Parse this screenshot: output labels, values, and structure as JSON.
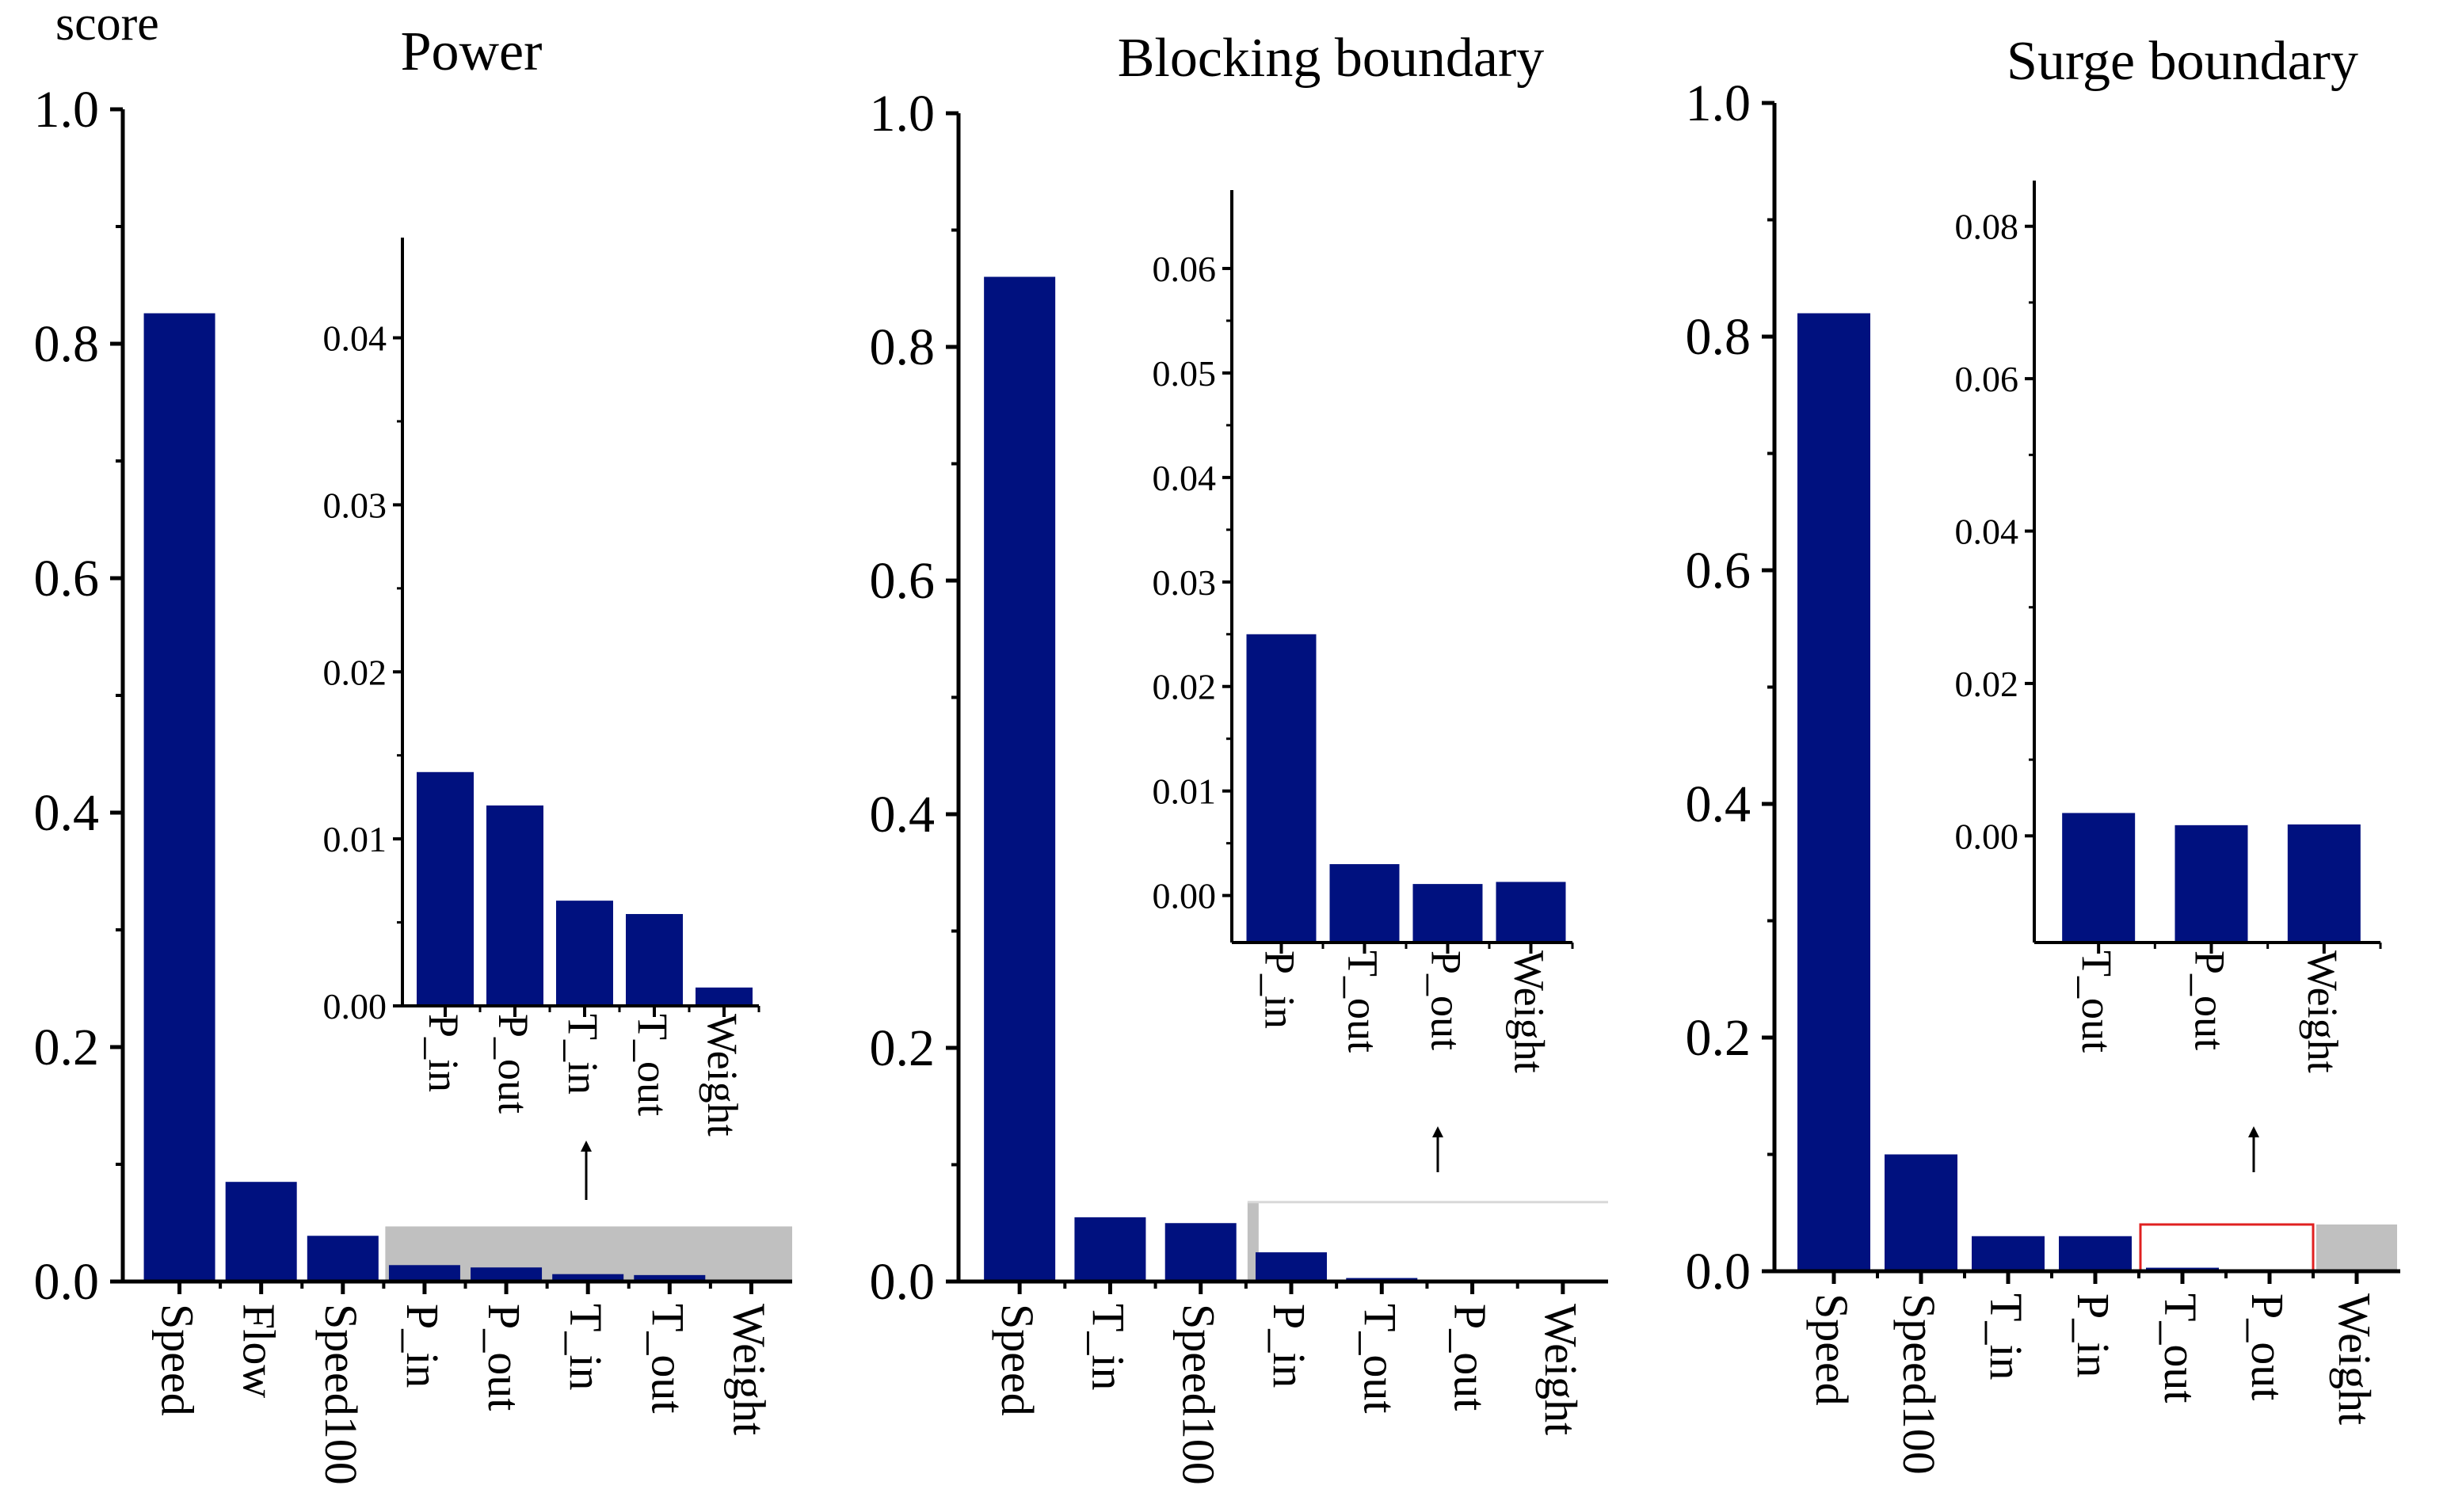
{
  "score_label": "score",
  "colors": {
    "bar": "#00117F",
    "highlight_gray": "#C0C0C0",
    "highlight_red": "#E02020",
    "axis": "#000000"
  },
  "chart_data": [
    {
      "id": "power",
      "type": "bar",
      "title": "Power",
      "ylabel": "score",
      "xlabel": "",
      "ylim": [
        0,
        1.0
      ],
      "yticks": [
        "1.0",
        "0.8",
        "0.6",
        "0.4",
        "0.2",
        "0.0"
      ],
      "ytick_values": [
        1.0,
        0.8,
        0.6,
        0.4,
        0.2,
        0.0
      ],
      "categories": [
        "Speed",
        "Flow",
        "Speed100",
        "P_in",
        "P_out",
        "T_in",
        "T_out",
        "Weight"
      ],
      "values": [
        0.826,
        0.085,
        0.039,
        0.014,
        0.012,
        0.0063,
        0.0055,
        0.0011
      ],
      "highlight": {
        "style": "gray",
        "from": "P_in",
        "to": "Weight"
      },
      "inset": {
        "categories": [
          "P_in",
          "P_out",
          "T_in",
          "T_out",
          "Weight"
        ],
        "values": [
          0.014,
          0.012,
          0.0063,
          0.0055,
          0.0011
        ],
        "ylim": [
          0,
          0.046
        ],
        "yticks": [
          "0.04",
          "0.03",
          "0.02",
          "0.01",
          "0.00"
        ],
        "ytick_values": [
          0.04,
          0.03,
          0.02,
          0.01,
          0.0
        ]
      }
    },
    {
      "id": "blocking",
      "type": "bar",
      "title": "Blocking boundary",
      "ylabel": "",
      "xlabel": "",
      "ylim": [
        0,
        1.0
      ],
      "yticks": [
        "1.0",
        "0.8",
        "0.6",
        "0.4",
        "0.2",
        "0.0"
      ],
      "ytick_values": [
        1.0,
        0.8,
        0.6,
        0.4,
        0.2,
        0.0
      ],
      "categories": [
        "Speed",
        "T_in",
        "Speed100",
        "P_in",
        "T_out",
        "P_out",
        "Weight"
      ],
      "values": [
        0.86,
        0.055,
        0.05,
        0.025,
        0.003,
        0.0011,
        0.0013
      ],
      "highlight": {
        "style": "outline",
        "from": "P_in",
        "to": "Weight"
      },
      "inset": {
        "categories": [
          "P_in",
          "T_out",
          "P_out",
          "Weight"
        ],
        "values": [
          0.025,
          0.003,
          0.0011,
          0.0013
        ],
        "ylim": [
          -0.0045,
          0.0675
        ],
        "yticks": [
          "0.06",
          "0.05",
          "0.04",
          "0.03",
          "0.02",
          "0.01",
          "0.00"
        ],
        "ytick_values": [
          0.06,
          0.05,
          0.04,
          0.03,
          0.02,
          0.01,
          0.0
        ]
      }
    },
    {
      "id": "surge",
      "type": "bar",
      "title": "Surge boundary",
      "ylabel": "",
      "xlabel": "",
      "ylim": [
        0,
        1.0
      ],
      "yticks": [
        "1.0",
        "0.8",
        "0.6",
        "0.4",
        "0.2",
        "0.0"
      ],
      "ytick_values": [
        1.0,
        0.8,
        0.6,
        0.4,
        0.2,
        0.0
      ],
      "categories": [
        "Speed",
        "Speed100",
        "T_in",
        "P_in",
        "T_out",
        "P_out",
        "Weight"
      ],
      "values": [
        0.82,
        0.1,
        0.03,
        0.03,
        0.003,
        0.0014,
        0.0015
      ],
      "highlight": {
        "style": "red-gray",
        "from": "T_out",
        "to": "Weight"
      },
      "inset": {
        "categories": [
          "T_out",
          "P_out",
          "Weight"
        ],
        "values": [
          0.003,
          0.0014,
          0.0015
        ],
        "ylim": [
          -0.014,
          0.086
        ],
        "yticks": [
          "0.08",
          "0.06",
          "0.04",
          "0.02",
          "0.00"
        ],
        "ytick_values": [
          0.08,
          0.06,
          0.04,
          0.02,
          0.0
        ]
      }
    }
  ]
}
